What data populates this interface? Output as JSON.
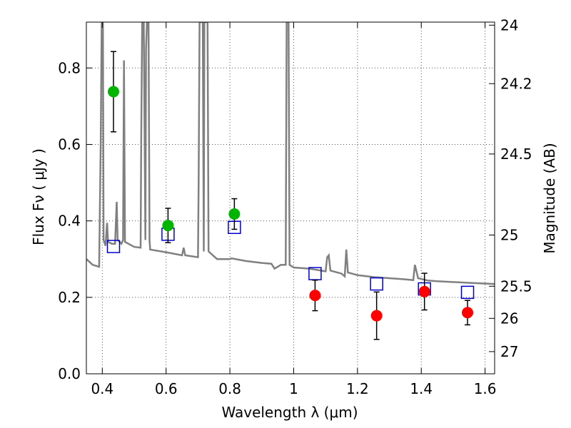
{
  "chart_data": {
    "type": "scatter",
    "title": "",
    "xlabel": "Wavelength  λ (μm)",
    "ylabel": "Flux  Fν  ( μJy )",
    "y2label": "Magnitude (AB)",
    "xlim": [
      0.35,
      1.63
    ],
    "ylim": [
      0.0,
      0.92
    ],
    "grid": true,
    "x_ticks": [
      0.4,
      0.6,
      0.8,
      1.0,
      1.2,
      1.4,
      1.6
    ],
    "x_tick_labels": [
      "0.4",
      "0.6",
      "0.8",
      "1",
      "1.2",
      "1.4",
      "1.6"
    ],
    "y_ticks": [
      0.0,
      0.2,
      0.4,
      0.6,
      0.8
    ],
    "y_tick_labels": [
      "0.0",
      "0.2",
      "0.4",
      "0.6",
      "0.8"
    ],
    "y2_ticks": [
      {
        "mag": "24",
        "flux": 0.912
      },
      {
        "mag": "24.2",
        "flux": 0.759
      },
      {
        "mag": "24.5",
        "flux": 0.575
      },
      {
        "mag": "25",
        "flux": 0.363
      },
      {
        "mag": "25.5",
        "flux": 0.229
      },
      {
        "mag": "26",
        "flux": 0.145
      },
      {
        "mag": "27",
        "flux": 0.058
      }
    ],
    "colors": {
      "model": "#808080",
      "green": "#00b400",
      "red": "#ff0000",
      "square": "#0000cc",
      "errorbar": "#000000",
      "grid": "#555555"
    },
    "series": [
      {
        "marker": "circle",
        "color": "#00b400",
        "points": [
          {
            "x": 0.435,
            "y": 0.738,
            "err": 0.105
          },
          {
            "x": 0.606,
            "y": 0.388,
            "err": 0.045
          },
          {
            "x": 0.814,
            "y": 0.418,
            "err": 0.04
          }
        ]
      },
      {
        "marker": "circle",
        "color": "#ff0000",
        "points": [
          {
            "x": 1.067,
            "y": 0.205,
            "err": 0.04
          },
          {
            "x": 1.26,
            "y": 0.152,
            "err": 0.062
          },
          {
            "x": 1.41,
            "y": 0.215,
            "err": 0.048
          },
          {
            "x": 1.545,
            "y": 0.16,
            "err": 0.032
          }
        ]
      },
      {
        "marker": "square",
        "color": "#0000cc",
        "points": [
          {
            "x": 0.435,
            "y": 0.333
          },
          {
            "x": 0.606,
            "y": 0.365
          },
          {
            "x": 0.814,
            "y": 0.383
          },
          {
            "x": 1.067,
            "y": 0.262
          },
          {
            "x": 1.26,
            "y": 0.235
          },
          {
            "x": 1.41,
            "y": 0.222
          },
          {
            "x": 1.545,
            "y": 0.213
          }
        ]
      }
    ],
    "model_spectrum": [
      [
        0.35,
        0.3
      ],
      [
        0.37,
        0.285
      ],
      [
        0.39,
        0.28
      ],
      [
        0.395,
        0.6
      ],
      [
        0.398,
        0.92
      ],
      [
        0.402,
        0.92
      ],
      [
        0.404,
        0.35
      ],
      [
        0.41,
        0.335
      ],
      [
        0.415,
        0.395
      ],
      [
        0.418,
        0.345
      ],
      [
        0.43,
        0.34
      ],
      [
        0.44,
        0.34
      ],
      [
        0.445,
        0.45
      ],
      [
        0.448,
        0.35
      ],
      [
        0.46,
        0.34
      ],
      [
        0.465,
        0.35
      ],
      [
        0.468,
        0.82
      ],
      [
        0.471,
        0.345
      ],
      [
        0.5,
        0.332
      ],
      [
        0.52,
        0.33
      ],
      [
        0.522,
        0.62
      ],
      [
        0.525,
        0.92
      ],
      [
        0.53,
        0.92
      ],
      [
        0.535,
        0.35
      ],
      [
        0.537,
        0.85
      ],
      [
        0.54,
        0.92
      ],
      [
        0.545,
        0.92
      ],
      [
        0.548,
        0.35
      ],
      [
        0.55,
        0.325
      ],
      [
        0.6,
        0.318
      ],
      [
        0.65,
        0.31
      ],
      [
        0.655,
        0.33
      ],
      [
        0.66,
        0.31
      ],
      [
        0.7,
        0.305
      ],
      [
        0.702,
        0.5
      ],
      [
        0.705,
        0.92
      ],
      [
        0.715,
        0.92
      ],
      [
        0.718,
        0.32
      ],
      [
        0.72,
        0.92
      ],
      [
        0.73,
        0.92
      ],
      [
        0.733,
        0.32
      ],
      [
        0.76,
        0.3
      ],
      [
        0.8,
        0.3
      ],
      [
        0.805,
        0.302
      ],
      [
        0.85,
        0.295
      ],
      [
        0.9,
        0.29
      ],
      [
        0.93,
        0.288
      ],
      [
        0.94,
        0.275
      ],
      [
        0.96,
        0.285
      ],
      [
        0.975,
        0.285
      ],
      [
        0.978,
        0.92
      ],
      [
        0.984,
        0.92
      ],
      [
        0.987,
        0.285
      ],
      [
        1.0,
        0.278
      ],
      [
        1.05,
        0.275
      ],
      [
        1.1,
        0.268
      ],
      [
        1.105,
        0.305
      ],
      [
        1.11,
        0.31
      ],
      [
        1.115,
        0.27
      ],
      [
        1.15,
        0.262
      ],
      [
        1.16,
        0.255
      ],
      [
        1.165,
        0.325
      ],
      [
        1.17,
        0.265
      ],
      [
        1.2,
        0.258
      ],
      [
        1.25,
        0.253
      ],
      [
        1.3,
        0.25
      ],
      [
        1.35,
        0.247
      ],
      [
        1.375,
        0.245
      ],
      [
        1.38,
        0.285
      ],
      [
        1.39,
        0.25
      ],
      [
        1.42,
        0.244
      ],
      [
        1.45,
        0.242
      ],
      [
        1.5,
        0.24
      ],
      [
        1.55,
        0.238
      ],
      [
        1.6,
        0.236
      ],
      [
        1.63,
        0.235
      ]
    ]
  }
}
